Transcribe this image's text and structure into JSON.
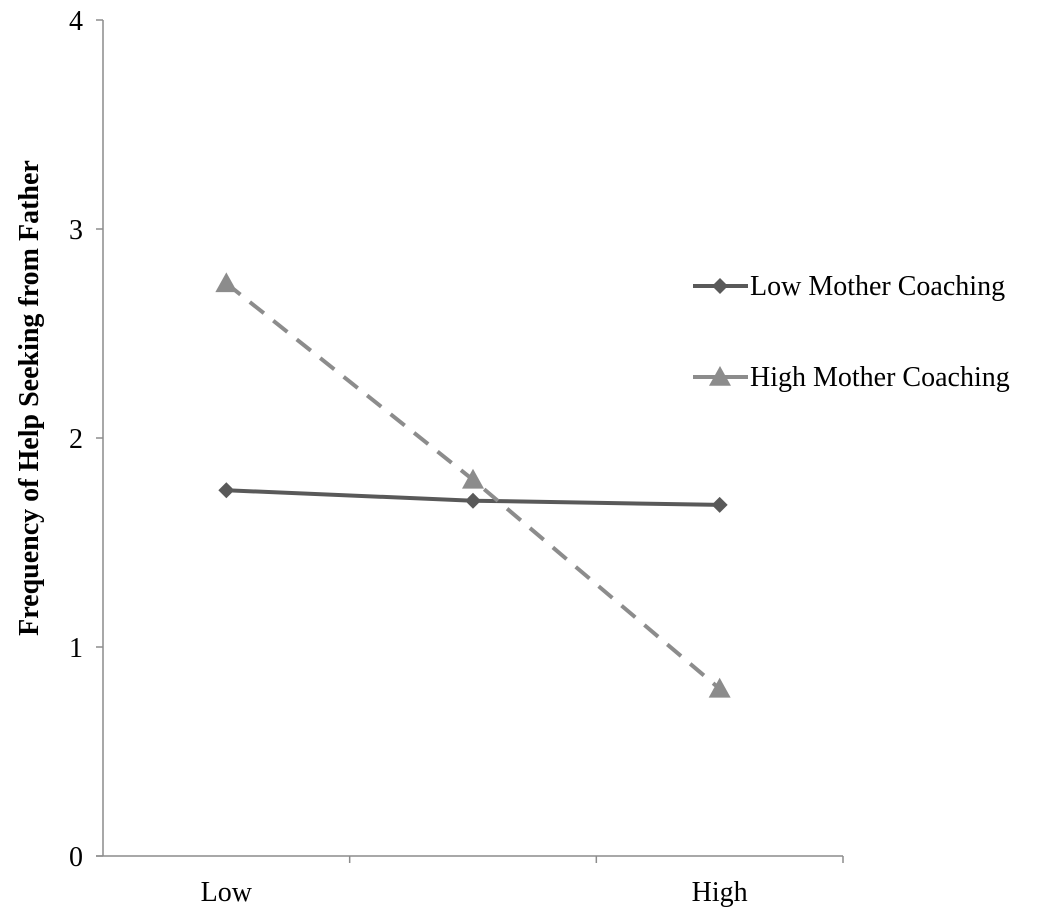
{
  "chart_data": {
    "type": "line",
    "title": "",
    "xlabel": "",
    "ylabel": "Frequency of Help Seeking from Father",
    "categories": [
      "Low",
      "",
      "High"
    ],
    "ylim": [
      0,
      4
    ],
    "yticks": [
      0,
      1,
      2,
      3,
      4
    ],
    "grid": false,
    "legend_position": "right",
    "series": [
      {
        "name": "Low Mother Coaching",
        "values": [
          1.75,
          1.7,
          1.68
        ],
        "color": "#595959",
        "marker": "diamond",
        "line_style": "solid"
      },
      {
        "name": "High Mother Coaching",
        "values": [
          2.74,
          1.8,
          0.8
        ],
        "color": "#8c8c8c",
        "marker": "triangle",
        "line_style": "dashed"
      }
    ]
  }
}
